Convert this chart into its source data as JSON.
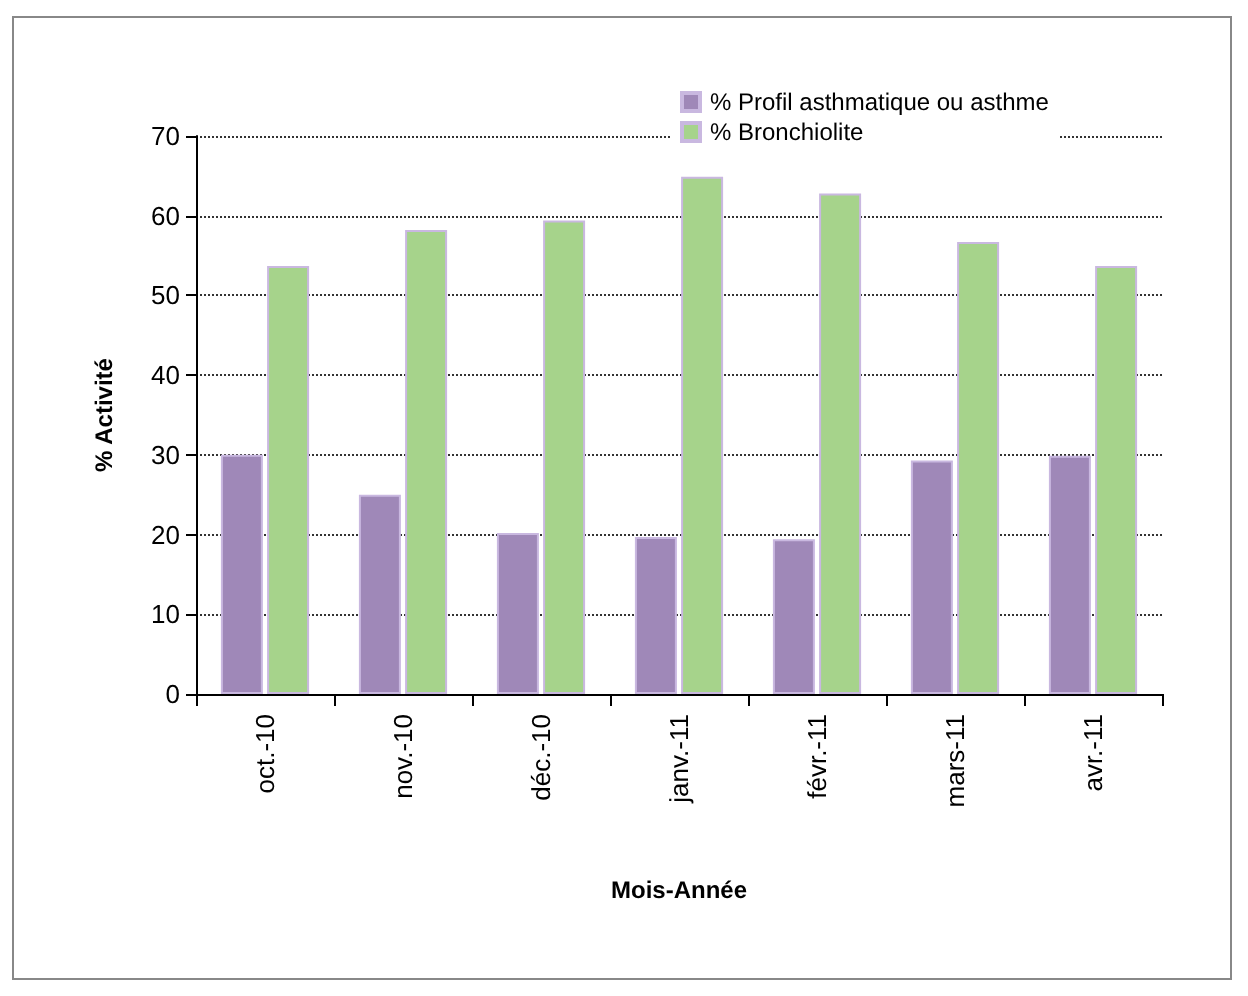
{
  "chart_data": {
    "type": "bar",
    "xlabel": "Mois-Année",
    "ylabel": "% Activité",
    "categories": [
      "oct.-10",
      "nov.-10",
      "déc.-10",
      "janv.-11",
      "févr.-11",
      "mars-11",
      "avr.-11"
    ],
    "series": [
      {
        "name": "% Profil asthmatique ou asthme",
        "color": "#9f88b8",
        "values": [
          30,
          25,
          20.2,
          19.7,
          19.4,
          29.3,
          29.9
        ]
      },
      {
        "name": "% Bronchiolite",
        "color": "#a6d38b",
        "values": [
          53.7,
          58.2,
          59.4,
          64.9,
          62.8,
          56.7,
          53.7
        ]
      }
    ],
    "ylim": [
      0,
      70
    ],
    "yticks": [
      0,
      10,
      20,
      30,
      40,
      50,
      60,
      70
    ],
    "grid": "y",
    "legend": "top right"
  }
}
